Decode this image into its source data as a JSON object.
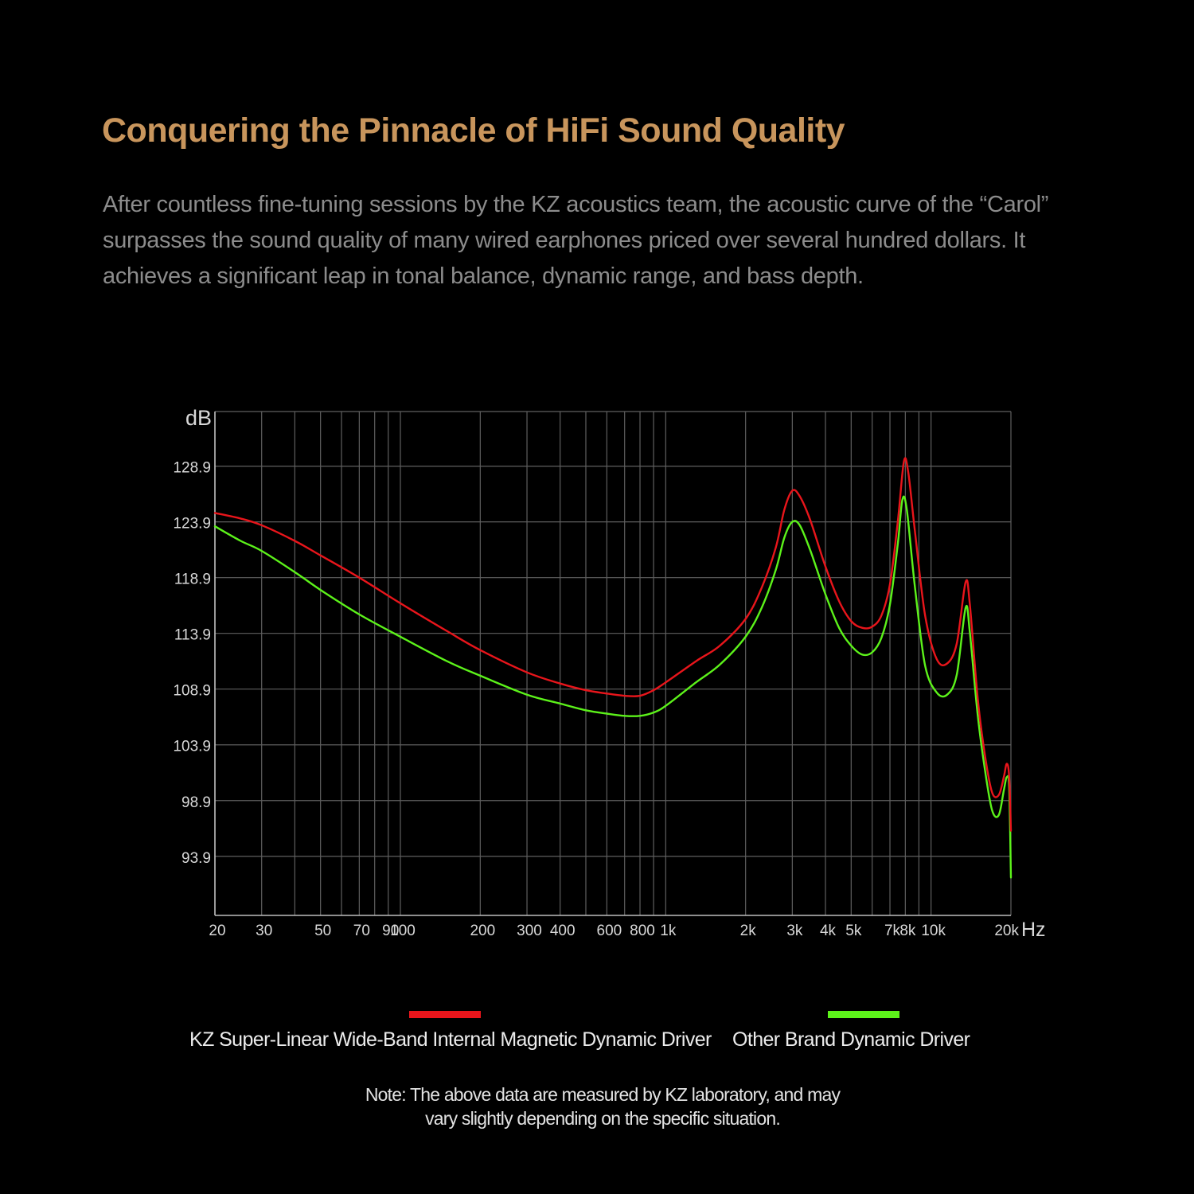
{
  "header": {
    "title": "Conquering the Pinnacle of HiFi Sound Quality",
    "description": "After countless fine-tuning sessions by the KZ acoustics team, the acoustic curve of the “Carol” surpasses the sound quality of many wired earphones priced over several hundred dollars. It achieves a significant leap in tonal balance, dynamic range, and bass depth."
  },
  "colors": {
    "background": "#000000",
    "title": "#c8955c",
    "description": "#8c8c8c",
    "grid": "#5f5f5f",
    "axis_text": "#d8d8d8",
    "series_kz": "#e8151b",
    "series_other": "#5cf21a"
  },
  "chart_data": {
    "type": "line",
    "title": "",
    "xlabel": "Hz",
    "ylabel": "dB",
    "xscale": "log",
    "xlim": [
      20,
      20000
    ],
    "ylim": [
      88.6,
      133.8
    ],
    "grid": true,
    "legend_position": "bottom",
    "xticks": [
      {
        "value": 20,
        "label": "20"
      },
      {
        "value": 30,
        "label": "30"
      },
      {
        "value": 50,
        "label": "50"
      },
      {
        "value": 70,
        "label": "70"
      },
      {
        "value": 90,
        "label": "90"
      },
      {
        "value": 100,
        "label": "100"
      },
      {
        "value": 200,
        "label": "200"
      },
      {
        "value": 300,
        "label": "300"
      },
      {
        "value": 400,
        "label": "400"
      },
      {
        "value": 600,
        "label": "600"
      },
      {
        "value": 800,
        "label": "800"
      },
      {
        "value": 1000,
        "label": "1k"
      },
      {
        "value": 2000,
        "label": "2k"
      },
      {
        "value": 3000,
        "label": "3k"
      },
      {
        "value": 4000,
        "label": "4k"
      },
      {
        "value": 5000,
        "label": "5k"
      },
      {
        "value": 7000,
        "label": "7k"
      },
      {
        "value": 8000,
        "label": "8k"
      },
      {
        "value": 10000,
        "label": "10k"
      },
      {
        "value": 20000,
        "label": "20k"
      }
    ],
    "x_gridlines": [
      20,
      30,
      40,
      50,
      60,
      70,
      80,
      90,
      100,
      200,
      300,
      400,
      500,
      600,
      700,
      800,
      900,
      1000,
      2000,
      3000,
      4000,
      5000,
      6000,
      7000,
      8000,
      9000,
      10000,
      20000
    ],
    "yticks": [
      93.9,
      98.9,
      103.9,
      108.9,
      113.9,
      118.9,
      123.9,
      128.9
    ],
    "ytick_labels": [
      "93.9",
      "98.9",
      "103.9",
      "108.9",
      "113.9",
      "118.9",
      "123.9",
      "128.9"
    ],
    "series": [
      {
        "name": "KZ Super-Linear Wide-Band Internal Magnetic Dynamic Driver",
        "color": "#e8151b",
        "points": [
          [
            20,
            124.7
          ],
          [
            25,
            124.2
          ],
          [
            30,
            123.6
          ],
          [
            40,
            122.2
          ],
          [
            50,
            120.9
          ],
          [
            70,
            118.9
          ],
          [
            100,
            116.6
          ],
          [
            150,
            114.1
          ],
          [
            200,
            112.4
          ],
          [
            300,
            110.4
          ],
          [
            400,
            109.4
          ],
          [
            500,
            108.8
          ],
          [
            600,
            108.5
          ],
          [
            700,
            108.3
          ],
          [
            800,
            108.3
          ],
          [
            900,
            108.8
          ],
          [
            1000,
            109.5
          ],
          [
            1300,
            111.4
          ],
          [
            1600,
            112.8
          ],
          [
            2000,
            115.2
          ],
          [
            2300,
            118.0
          ],
          [
            2600,
            121.6
          ],
          [
            2800,
            125.0
          ],
          [
            3000,
            126.7
          ],
          [
            3200,
            126.2
          ],
          [
            3500,
            124.1
          ],
          [
            4000,
            119.9
          ],
          [
            4500,
            116.8
          ],
          [
            5000,
            115.0
          ],
          [
            5500,
            114.4
          ],
          [
            6000,
            114.5
          ],
          [
            6500,
            115.5
          ],
          [
            7000,
            118.3
          ],
          [
            7500,
            124.0
          ],
          [
            7900,
            129.3
          ],
          [
            8200,
            128.4
          ],
          [
            8700,
            123.0
          ],
          [
            9500,
            115.5
          ],
          [
            10500,
            111.6
          ],
          [
            11500,
            111.2
          ],
          [
            12500,
            113.0
          ],
          [
            13500,
            118.5
          ],
          [
            14000,
            116.5
          ],
          [
            15000,
            108.0
          ],
          [
            16000,
            102.8
          ],
          [
            17000,
            99.6
          ],
          [
            18000,
            99.4
          ],
          [
            18800,
            101.0
          ],
          [
            19300,
            102.2
          ],
          [
            19700,
            101.0
          ],
          [
            20000,
            96.2
          ]
        ]
      },
      {
        "name": "Other Brand Dynamic Driver",
        "color": "#5cf21a",
        "points": [
          [
            20,
            123.5
          ],
          [
            25,
            122.2
          ],
          [
            30,
            121.3
          ],
          [
            40,
            119.4
          ],
          [
            50,
            117.8
          ],
          [
            70,
            115.6
          ],
          [
            100,
            113.6
          ],
          [
            150,
            111.4
          ],
          [
            200,
            110.1
          ],
          [
            300,
            108.4
          ],
          [
            400,
            107.6
          ],
          [
            500,
            107.0
          ],
          [
            600,
            106.7
          ],
          [
            700,
            106.5
          ],
          [
            800,
            106.5
          ],
          [
            900,
            106.8
          ],
          [
            1000,
            107.4
          ],
          [
            1300,
            109.5
          ],
          [
            1600,
            111.1
          ],
          [
            2000,
            113.6
          ],
          [
            2300,
            116.2
          ],
          [
            2600,
            119.6
          ],
          [
            2800,
            122.5
          ],
          [
            3000,
            123.9
          ],
          [
            3200,
            123.6
          ],
          [
            3500,
            121.4
          ],
          [
            4000,
            117.4
          ],
          [
            4500,
            114.4
          ],
          [
            5000,
            112.8
          ],
          [
            5500,
            112.0
          ],
          [
            6000,
            112.2
          ],
          [
            6500,
            113.5
          ],
          [
            7000,
            116.5
          ],
          [
            7500,
            122.0
          ],
          [
            7800,
            125.9
          ],
          [
            8100,
            125.0
          ],
          [
            8700,
            118.0
          ],
          [
            9500,
            111.0
          ],
          [
            10500,
            108.6
          ],
          [
            11500,
            108.4
          ],
          [
            12500,
            110.2
          ],
          [
            13500,
            116.2
          ],
          [
            14000,
            114.0
          ],
          [
            15000,
            106.5
          ],
          [
            16000,
            101.5
          ],
          [
            17000,
            98.0
          ],
          [
            18000,
            97.6
          ],
          [
            18800,
            99.8
          ],
          [
            19300,
            101.0
          ],
          [
            19700,
            100.0
          ],
          [
            20000,
            92.0
          ]
        ]
      }
    ]
  },
  "legend": [
    {
      "label": "KZ Super-Linear Wide-Band Internal Magnetic Dynamic Driver",
      "color": "#e8151b"
    },
    {
      "label": "Other Brand Dynamic Driver",
      "color": "#5cf21a"
    }
  ],
  "note": {
    "line1": "Note: The above data are measured by KZ laboratory, and may",
    "line2": "vary slightly depending on the specific situation."
  }
}
